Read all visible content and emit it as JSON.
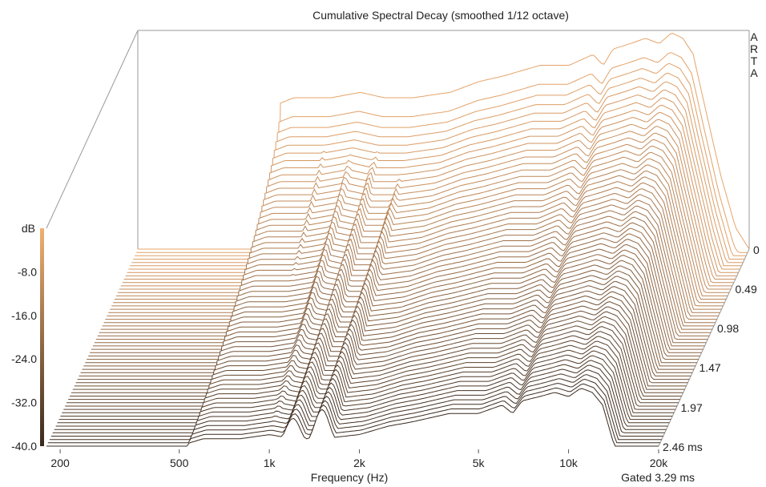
{
  "chart_data": {
    "type": "waterfall",
    "title": "Cumulative Spectral Decay (smoothed 1/12 octave)",
    "brand_letters": [
      "A",
      "R",
      "T",
      "A"
    ],
    "xlabel": "Frequency (Hz)",
    "x_scale": "log",
    "xlim": [
      180,
      20000
    ],
    "x_ticks": [
      {
        "value": 200,
        "label": "200"
      },
      {
        "value": 500,
        "label": "500"
      },
      {
        "value": 1000,
        "label": "1k"
      },
      {
        "value": 2000,
        "label": "2k"
      },
      {
        "value": 5000,
        "label": "5k"
      },
      {
        "value": 10000,
        "label": "10k"
      },
      {
        "value": 20000,
        "label": "20k"
      }
    ],
    "zlabel": "dB",
    "zlim": [
      -40,
      0
    ],
    "z_ticks": [
      {
        "value": -8,
        "label": "-8.0"
      },
      {
        "value": -16,
        "label": "-16.0"
      },
      {
        "value": -24,
        "label": "-24.0"
      },
      {
        "value": -32,
        "label": "-32.0"
      },
      {
        "value": -40,
        "label": "-40.0"
      }
    ],
    "time_unit": "ms",
    "time_ticks": [
      {
        "value": 0,
        "label": "0"
      },
      {
        "value": 0.49,
        "label": "0.49"
      },
      {
        "value": 0.98,
        "label": "0.98"
      },
      {
        "value": 1.47,
        "label": "1.47"
      },
      {
        "value": 1.97,
        "label": "1.97"
      },
      {
        "value": 2.46,
        "label": "2.46 ms"
      }
    ],
    "gated_label": "Gated 3.29 ms",
    "slice_count": 60,
    "time_range": [
      0,
      2.46
    ],
    "low_cutoff_hz": 540,
    "initial_response_db": [
      {
        "f": 540,
        "db": -13
      },
      {
        "f": 600,
        "db": -12
      },
      {
        "f": 800,
        "db": -12
      },
      {
        "f": 1000,
        "db": -11
      },
      {
        "f": 1200,
        "db": -12
      },
      {
        "f": 1500,
        "db": -12
      },
      {
        "f": 2000,
        "db": -11
      },
      {
        "f": 2500,
        "db": -9
      },
      {
        "f": 3000,
        "db": -8
      },
      {
        "f": 4000,
        "db": -6
      },
      {
        "f": 5000,
        "db": -6
      },
      {
        "f": 6000,
        "db": -4
      },
      {
        "f": 6500,
        "db": -6
      },
      {
        "f": 7000,
        "db": -3
      },
      {
        "f": 8000,
        "db": -2
      },
      {
        "f": 9000,
        "db": -1
      },
      {
        "f": 10000,
        "db": -2
      },
      {
        "f": 11000,
        "db": 0
      },
      {
        "f": 12000,
        "db": -1
      },
      {
        "f": 13000,
        "db": -4
      },
      {
        "f": 14000,
        "db": -12
      },
      {
        "f": 16000,
        "db": -26
      },
      {
        "f": 18000,
        "db": -36
      },
      {
        "f": 20000,
        "db": -40
      }
    ],
    "decay_modes": [
      {
        "f": 700,
        "db": -17,
        "ms": 0.45
      },
      {
        "f": 800,
        "db": -16,
        "ms": 1.2
      },
      {
        "f": 1000,
        "db": -16,
        "ms": 1.6
      },
      {
        "f": 1200,
        "db": -17,
        "ms": 2.1
      },
      {
        "f": 1500,
        "db": -19,
        "ms": 2.8
      },
      {
        "f": 4200,
        "db": -14,
        "ms": 0.9
      },
      {
        "f": 4600,
        "db": -13,
        "ms": 0.6
      },
      {
        "f": 5800,
        "db": -14,
        "ms": 0.8
      },
      {
        "f": 7700,
        "db": -9,
        "ms": 0.85
      },
      {
        "f": 8200,
        "db": -7,
        "ms": 1.0
      },
      {
        "f": 9500,
        "db": -8,
        "ms": 0.7
      }
    ],
    "colors": {
      "front": "#3a2a1e",
      "back": "#e6a46a",
      "axes": "#999999"
    }
  }
}
